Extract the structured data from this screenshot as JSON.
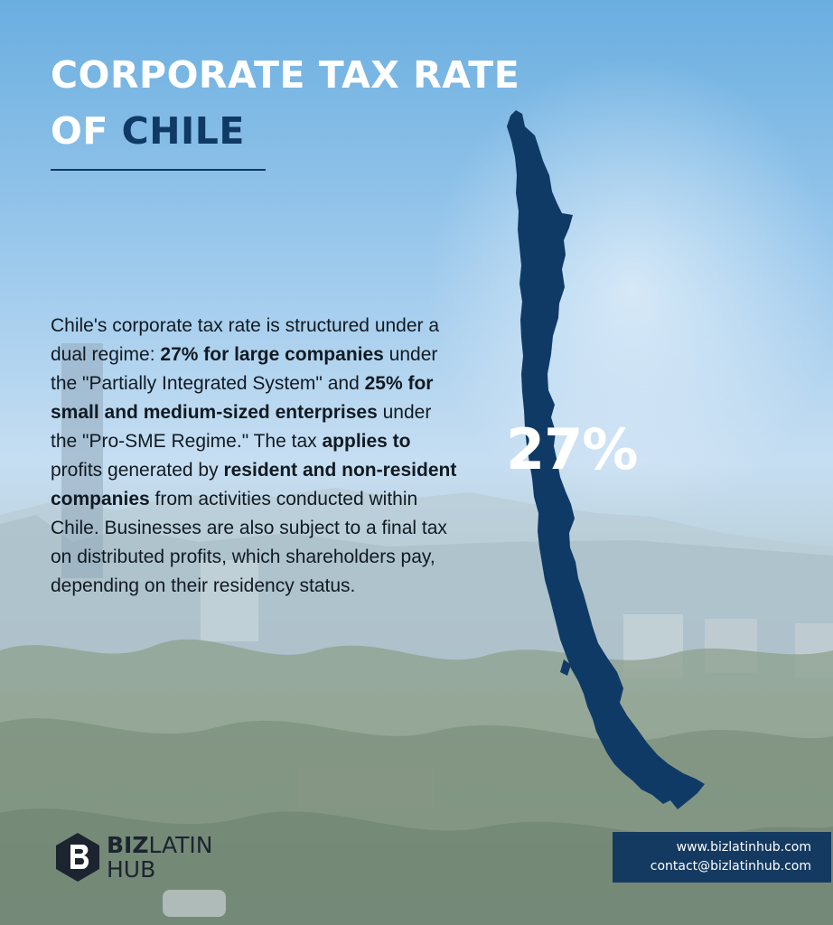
{
  "header": {
    "title_line1": "CORPORATE TAX RATE",
    "title_line2_prefix": "OF ",
    "title_line2_highlight": "CHILE"
  },
  "body": {
    "p1": "Chile's corporate tax rate is structured under a dual regime: ",
    "b1": "27% for large companies",
    "p2": " under the \"Partially Integrated System\" and ",
    "b2": "25% for small and medium-sized enterprises",
    "p3": " under the \"Pro-SME Regime.\" The tax ",
    "b3": "applies to",
    "p4": " profits generated by ",
    "b4": "resident and non-resident companies",
    "p5": " from activities conducted within Chile. Businesses are also subject to a final tax on distributed profits, which shareholders pay, depending on their residency status."
  },
  "map": {
    "rate_label": "27%",
    "map_color": "#0f3a66"
  },
  "logo": {
    "word1": "BIZ",
    "word2": "LATIN",
    "word3": "HUB"
  },
  "contact": {
    "website": "www.bizlatinhub.com",
    "email": "contact@bizlatinhub.com"
  },
  "colors": {
    "brand_navy": "#0f3a66",
    "title_white": "#ffffff"
  }
}
